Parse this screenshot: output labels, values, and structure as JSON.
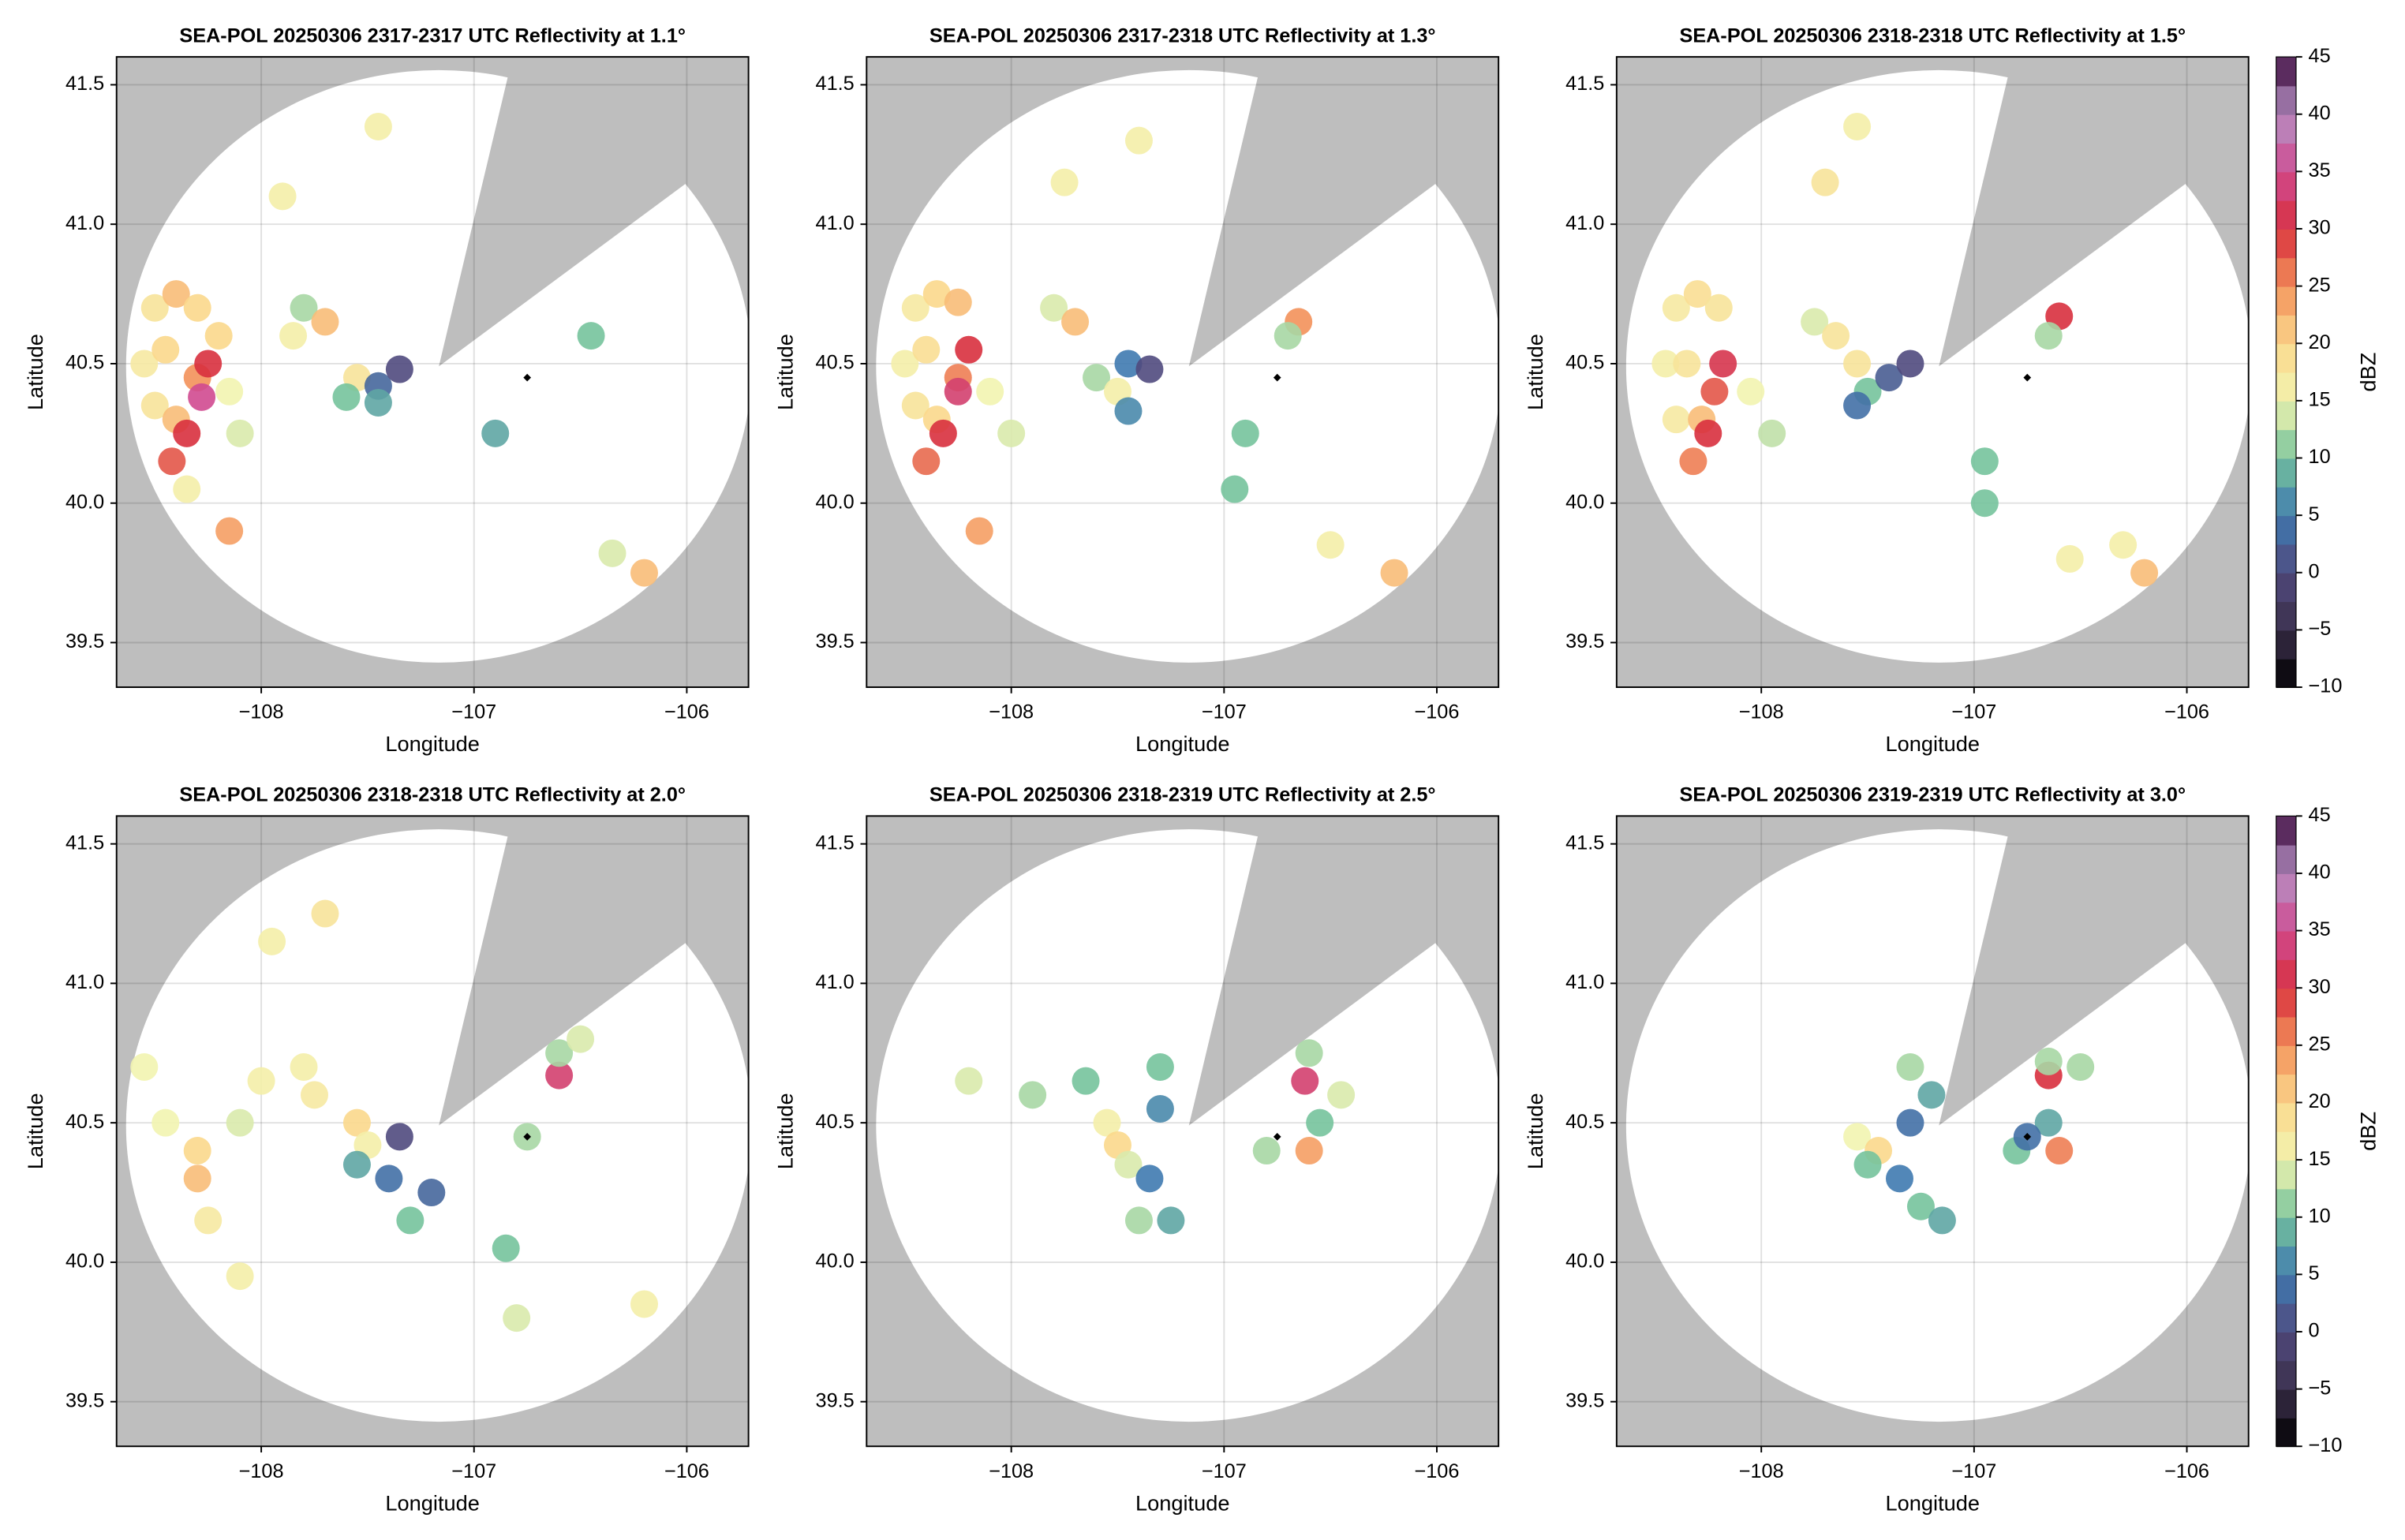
{
  "chart_data": [
    {
      "type": "radar",
      "title": "SEA-POL 20250306 2317-2317 UTC Reflectivity at 1.1°",
      "x_label": "Longitude",
      "y_label": "Latitude",
      "xlim": [
        -108.68,
        -105.71
      ],
      "ylim": [
        39.34,
        41.6
      ],
      "xticks": [
        {
          "value": -108,
          "label": "−108"
        },
        {
          "value": -107,
          "label": "−107"
        },
        {
          "value": -106,
          "label": "−106"
        }
      ],
      "yticks": [
        39.5,
        {
          "value": 40.0,
          "label": "40.0"
        },
        40.5,
        {
          "value": 41.0,
          "label": "41.0"
        },
        41.5
      ],
      "grid": true,
      "site": {
        "x": -106.75,
        "y": 40.45
      },
      "echoes": {
        "x": [
          -108.5,
          -108.4,
          -108.3,
          -108.55,
          -108.45,
          -108.5,
          -108.4,
          -108.3,
          -108.25,
          -108.28,
          -108.35,
          -108.42,
          -108.2,
          -108.15,
          -108.1,
          -108.35,
          -107.8,
          -107.7,
          -107.85,
          -107.55,
          -107.6,
          -107.45,
          -107.35,
          -107.45,
          -106.9,
          -106.45,
          -107.9,
          -107.45,
          -106.2,
          -106.35,
          -108.15
        ],
        "y": [
          40.7,
          40.75,
          40.7,
          40.5,
          40.55,
          40.35,
          40.3,
          40.45,
          40.5,
          40.38,
          40.25,
          40.15,
          40.6,
          40.4,
          40.25,
          40.05,
          40.7,
          40.65,
          40.6,
          40.45,
          40.38,
          40.42,
          40.48,
          40.36,
          40.25,
          40.6,
          41.1,
          41.35,
          39.75,
          39.82,
          39.9
        ],
        "values": [
          18,
          22,
          20,
          17,
          20,
          18,
          22,
          25,
          30,
          35,
          30,
          28,
          20,
          15,
          14,
          16,
          12,
          22,
          16,
          18,
          10,
          3,
          0,
          8,
          8,
          10,
          16,
          16,
          22,
          14,
          24
        ]
      }
    },
    {
      "type": "radar",
      "title": "SEA-POL 20250306 2317-2318 UTC Reflectivity at 1.3°",
      "x_label": "Longitude",
      "y_label": "Latitude",
      "xlim": [
        -108.68,
        -105.71
      ],
      "ylim": [
        39.34,
        41.6
      ],
      "xticks": [
        {
          "value": -108,
          "label": "−108"
        },
        {
          "value": -107,
          "label": "−107"
        },
        {
          "value": -106,
          "label": "−106"
        }
      ],
      "yticks": [
        39.5,
        {
          "value": 40.0,
          "label": "40.0"
        },
        40.5,
        {
          "value": 41.0,
          "label": "41.0"
        },
        41.5
      ],
      "grid": true,
      "site": {
        "x": -106.75,
        "y": 40.45
      },
      "echoes": {
        "x": [
          -108.45,
          -108.35,
          -108.25,
          -108.5,
          -108.4,
          -108.45,
          -108.35,
          -108.25,
          -108.2,
          -108.25,
          -108.32,
          -108.4,
          -108.1,
          -108.0,
          -107.8,
          -107.7,
          -107.6,
          -107.5,
          -107.45,
          -107.35,
          -107.45,
          -106.65,
          -106.7,
          -106.9,
          -106.95,
          -106.5,
          -106.2,
          -107.75,
          -107.4,
          -108.15
        ],
        "y": [
          40.7,
          40.75,
          40.72,
          40.5,
          40.55,
          40.35,
          40.3,
          40.45,
          40.55,
          40.4,
          40.25,
          40.15,
          40.4,
          40.25,
          40.7,
          40.65,
          40.45,
          40.4,
          40.5,
          40.48,
          40.33,
          40.65,
          40.6,
          40.25,
          40.05,
          39.85,
          39.75,
          41.15,
          41.3,
          39.9
        ],
        "values": [
          17,
          20,
          22,
          16,
          19,
          18,
          20,
          26,
          30,
          33,
          30,
          27,
          15,
          14,
          14,
          22,
          12,
          16,
          5,
          0,
          6,
          25,
          12,
          10,
          10,
          16,
          22,
          16,
          16,
          24
        ]
      }
    },
    {
      "type": "radar",
      "title": "SEA-POL 20250306 2318-2318 UTC Reflectivity at 1.5°",
      "x_label": "Longitude",
      "y_label": "Latitude",
      "xlim": [
        -108.68,
        -105.71
      ],
      "ylim": [
        39.34,
        41.6
      ],
      "xticks": [
        {
          "value": -108,
          "label": "−108"
        },
        {
          "value": -107,
          "label": "−107"
        },
        {
          "value": -106,
          "label": "−106"
        }
      ],
      "yticks": [
        39.5,
        {
          "value": 40.0,
          "label": "40.0"
        },
        40.5,
        {
          "value": 41.0,
          "label": "41.0"
        },
        41.5
      ],
      "grid": true,
      "site": {
        "x": -106.75,
        "y": 40.45
      },
      "echoes": {
        "x": [
          -108.4,
          -108.3,
          -108.2,
          -108.45,
          -108.35,
          -108.4,
          -108.28,
          -108.22,
          -108.18,
          -108.25,
          -108.32,
          -108.05,
          -107.95,
          -107.75,
          -107.65,
          -107.55,
          -107.5,
          -107.55,
          -107.4,
          -107.3,
          -106.6,
          -106.65,
          -106.95,
          -106.95,
          -106.55,
          -106.2,
          -106.3,
          -107.7,
          -107.55
        ],
        "y": [
          40.7,
          40.75,
          40.7,
          40.5,
          40.5,
          40.3,
          40.3,
          40.4,
          40.5,
          40.25,
          40.15,
          40.4,
          40.25,
          40.65,
          40.6,
          40.5,
          40.4,
          40.35,
          40.45,
          40.5,
          40.67,
          40.6,
          40.15,
          40.0,
          39.8,
          39.75,
          39.85,
          41.15,
          41.35
        ],
        "values": [
          17,
          19,
          18,
          16,
          18,
          17,
          22,
          28,
          31,
          30,
          26,
          15,
          13,
          14,
          18,
          18,
          10,
          4,
          2,
          0,
          30,
          12,
          10,
          10,
          16,
          22,
          16,
          18,
          16
        ]
      },
      "colorbar": {
        "label": "dBZ",
        "lim": [
          -10,
          45
        ],
        "ticks": [
          {
            "value": -10,
            "label": "−10"
          },
          {
            "value": -5,
            "label": "−5"
          },
          0,
          5,
          10,
          15,
          20,
          25,
          30,
          35,
          40,
          45
        ],
        "colors": [
          "#000000",
          "#3a2f4a",
          "#504a7e",
          "#3f7ab0",
          "#75c39c",
          "#f2f4b0",
          "#fbd88c",
          "#f3915a",
          "#d8303e",
          "#d04a90",
          "#b590c4",
          "#3d0a3d"
        ]
      }
    },
    {
      "type": "radar",
      "title": "SEA-POL 20250306 2318-2318 UTC Reflectivity at 2.0°",
      "x_label": "Longitude",
      "y_label": "Latitude",
      "xlim": [
        -108.68,
        -105.71
      ],
      "ylim": [
        39.34,
        41.6
      ],
      "xticks": [
        {
          "value": -108,
          "label": "−108"
        },
        {
          "value": -107,
          "label": "−107"
        },
        {
          "value": -106,
          "label": "−106"
        }
      ],
      "yticks": [
        39.5,
        {
          "value": 40.0,
          "label": "40.0"
        },
        40.5,
        {
          "value": 41.0,
          "label": "41.0"
        },
        41.5
      ],
      "grid": true,
      "site": {
        "x": -106.75,
        "y": 40.45
      },
      "echoes": {
        "x": [
          -108.55,
          -108.45,
          -108.3,
          -108.3,
          -108.25,
          -108.1,
          -108.0,
          -107.8,
          -107.75,
          -107.55,
          -107.5,
          -107.55,
          -107.4,
          -107.35,
          -107.2,
          -107.3,
          -106.6,
          -106.6,
          -106.5,
          -106.75,
          -106.85,
          -107.95,
          -107.7,
          -106.8,
          -106.2,
          -108.1
        ],
        "y": [
          40.7,
          40.5,
          40.4,
          40.3,
          40.15,
          40.5,
          40.65,
          40.7,
          40.6,
          40.5,
          40.42,
          40.35,
          40.3,
          40.45,
          40.25,
          40.15,
          40.67,
          40.75,
          40.8,
          40.45,
          40.05,
          41.15,
          41.25,
          39.8,
          39.85,
          39.95
        ],
        "values": [
          15,
          15,
          20,
          22,
          17,
          14,
          16,
          16,
          17,
          20,
          16,
          8,
          4,
          0,
          3,
          10,
          33,
          12,
          14,
          12,
          10,
          16,
          18,
          14,
          16,
          16
        ]
      }
    },
    {
      "type": "radar",
      "title": "SEA-POL 20250306 2318-2319 UTC Reflectivity at 2.5°",
      "x_label": "Longitude",
      "y_label": "Latitude",
      "xlim": [
        -108.68,
        -105.71
      ],
      "ylim": [
        39.34,
        41.6
      ],
      "xticks": [
        {
          "value": -108,
          "label": "−108"
        },
        {
          "value": -107,
          "label": "−107"
        },
        {
          "value": -106,
          "label": "−106"
        }
      ],
      "yticks": [
        39.5,
        {
          "value": 40.0,
          "label": "40.0"
        },
        40.5,
        {
          "value": 41.0,
          "label": "41.0"
        },
        41.5
      ],
      "grid": true,
      "site": {
        "x": -106.75,
        "y": 40.45
      },
      "echoes": {
        "x": [
          -108.2,
          -107.9,
          -107.65,
          -107.55,
          -107.5,
          -107.45,
          -107.35,
          -107.25,
          -107.4,
          -107.3,
          -107.3,
          -106.62,
          -106.6,
          -106.45,
          -106.6,
          -106.55,
          -106.8
        ],
        "y": [
          40.65,
          40.6,
          40.65,
          40.5,
          40.42,
          40.35,
          40.3,
          40.15,
          40.15,
          40.55,
          40.7,
          40.65,
          40.75,
          40.6,
          40.4,
          40.5,
          40.4
        ],
        "values": [
          14,
          12,
          10,
          16,
          20,
          14,
          5,
          8,
          12,
          6,
          10,
          33,
          12,
          14,
          24,
          10,
          12
        ]
      }
    },
    {
      "type": "radar",
      "title": "SEA-POL 20250306 2319-2319 UTC Reflectivity at 3.0°",
      "x_label": "Longitude",
      "y_label": "Latitude",
      "xlim": [
        -108.68,
        -105.71
      ],
      "ylim": [
        39.34,
        41.6
      ],
      "xticks": [
        {
          "value": -108,
          "label": "−108"
        },
        {
          "value": -107,
          "label": "−107"
        },
        {
          "value": -106,
          "label": "−106"
        }
      ],
      "yticks": [
        39.5,
        {
          "value": 40.0,
          "label": "40.0"
        },
        40.5,
        {
          "value": 41.0,
          "label": "41.0"
        },
        41.5
      ],
      "grid": true,
      "site": {
        "x": -106.75,
        "y": 40.45
      },
      "echoes": {
        "x": [
          -107.55,
          -107.45,
          -107.5,
          -107.35,
          -107.3,
          -107.2,
          -107.3,
          -107.25,
          -107.15,
          -106.65,
          -106.65,
          -106.5,
          -106.6,
          -106.65,
          -106.8,
          -106.75
        ],
        "y": [
          40.45,
          40.4,
          40.35,
          40.3,
          40.5,
          40.6,
          40.7,
          40.2,
          40.15,
          40.67,
          40.72,
          40.7,
          40.4,
          40.5,
          40.4,
          40.45
        ],
        "values": [
          15,
          20,
          10,
          5,
          4,
          8,
          12,
          10,
          8,
          30,
          12,
          12,
          26,
          8,
          10,
          4
        ]
      },
      "colorbar": {
        "label": "dBZ",
        "lim": [
          -10,
          45
        ],
        "ticks": [
          {
            "value": -10,
            "label": "−10"
          },
          {
            "value": -5,
            "label": "−5"
          },
          0,
          5,
          10,
          15,
          20,
          25,
          30,
          35,
          40,
          45
        ],
        "colors": [
          "#000000",
          "#3a2f4a",
          "#504a7e",
          "#3f7ab0",
          "#75c39c",
          "#f2f4b0",
          "#fbd88c",
          "#f3915a",
          "#d8303e",
          "#d04a90",
          "#b590c4",
          "#3d0a3d"
        ]
      }
    }
  ]
}
